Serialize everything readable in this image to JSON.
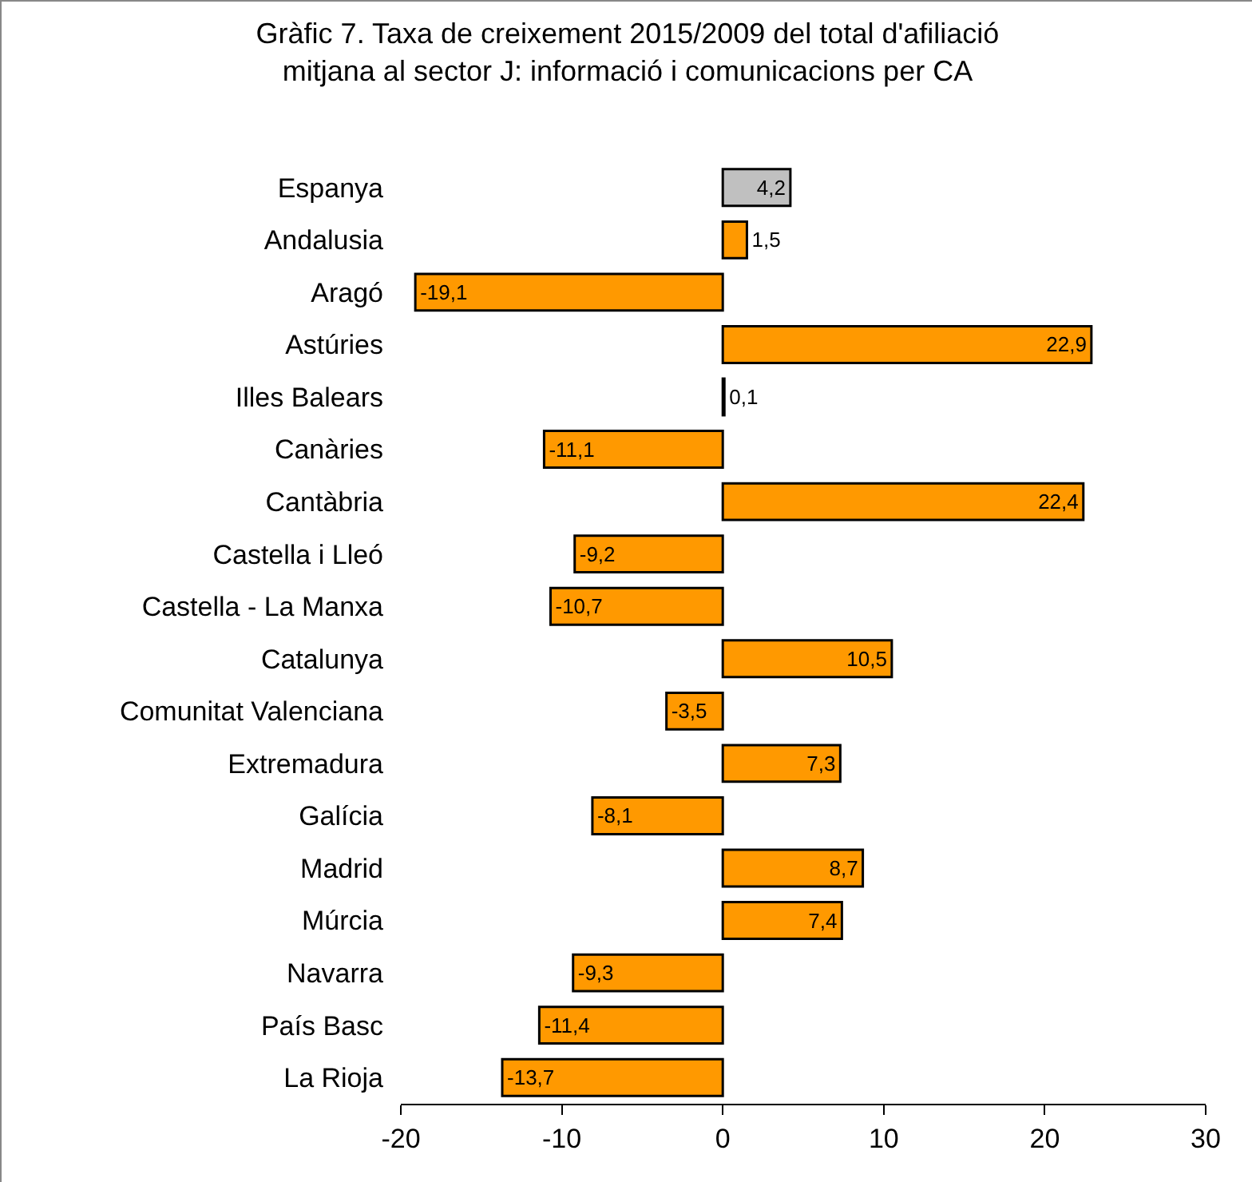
{
  "chart_data": {
    "type": "bar",
    "orientation": "horizontal",
    "title": "Gràfic 7. Taxa de creixement 2015/2009 del total d'afiliació mitjana al sector J: informació i comunicacions per CA",
    "categories": [
      "Espanya",
      "Andalusia",
      "Aragó",
      "Astúries",
      "Illes Balears",
      "Canàries",
      "Cantàbria",
      "Castella i Lleó",
      "Castella - La Manxa",
      "Catalunya",
      "Comunitat Valenciana",
      "Extremadura",
      "Galícia",
      "Madrid",
      "Múrcia",
      "Navarra",
      "País Basc",
      "La Rioja"
    ],
    "values": [
      4.2,
      1.5,
      -19.1,
      22.9,
      0.1,
      -11.1,
      22.4,
      -9.2,
      -10.7,
      10.5,
      -3.5,
      7.3,
      -8.1,
      8.7,
      7.4,
      -9.3,
      -11.4,
      -13.7
    ],
    "value_labels": [
      "4,2",
      "1,5",
      "-19,1",
      "22,9",
      "0,1",
      "-11,1",
      "22,4",
      "-9,2",
      "-10,7",
      "10,5",
      "-3,5",
      "7,3",
      "-8,1",
      "8,7",
      "7,4",
      "-9,3",
      "-11,4",
      "-13,7"
    ],
    "colors": [
      "#c0c0c0",
      "#ff9900",
      "#ff9900",
      "#ff9900",
      "#ff9900",
      "#ff9900",
      "#ff9900",
      "#ff9900",
      "#ff9900",
      "#ff9900",
      "#ff9900",
      "#ff9900",
      "#ff9900",
      "#ff9900",
      "#ff9900",
      "#ff9900",
      "#ff9900",
      "#ff9900"
    ],
    "xlim": [
      -20,
      30
    ],
    "xticks": [
      -20,
      -10,
      0,
      10,
      20,
      30
    ],
    "grid": false
  }
}
